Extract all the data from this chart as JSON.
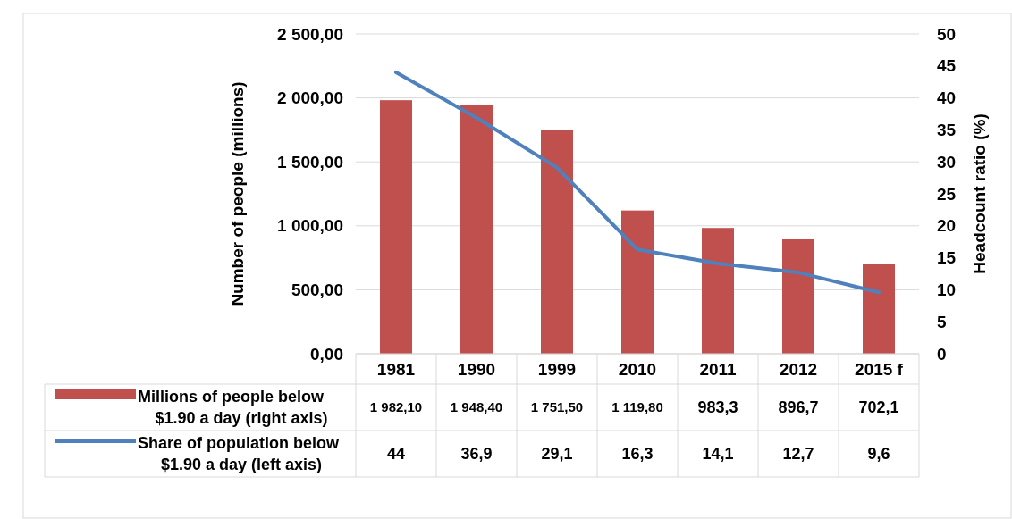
{
  "chart_data": {
    "type": "bar",
    "categories": [
      "1981",
      "1990",
      "1999",
      "2010",
      "2011",
      "2012",
      "2015 f"
    ],
    "series": [
      {
        "name": "Millions of people below $1.90 a day (right axis)",
        "color": "#c0504d",
        "values": [
          1982.1,
          1948.4,
          1751.5,
          1119.8,
          983.3,
          896.7,
          702.1
        ],
        "value_labels": [
          "1 982,10",
          "1 948,40",
          "1 751,50",
          "1 119,80",
          "983,3",
          "896,7",
          "702,1"
        ]
      },
      {
        "name": "Share of population below $1.90 a day (left axis)",
        "type": "line",
        "axis": "y2",
        "color": "#4f81bd",
        "values": [
          44,
          36.9,
          29.1,
          16.3,
          14.1,
          12.7,
          9.6
        ],
        "value_labels": [
          "44",
          "36,9",
          "29,1",
          "16,3",
          "14,1",
          "12,7",
          "9,6"
        ]
      }
    ],
    "ylabel": "Number of people (millions)",
    "y2label": "Headcount ratio (%)",
    "ylim": [
      0,
      2500
    ],
    "yticks": [
      {
        "value": 0,
        "label": "0,00"
      },
      {
        "value": 500,
        "label": "500,00"
      },
      {
        "value": 1000,
        "label": "1 000,00"
      },
      {
        "value": 1500,
        "label": "1 500,00"
      },
      {
        "value": 2000,
        "label": "2 000,00"
      },
      {
        "value": 2500,
        "label": "2 500,00"
      }
    ],
    "y2lim": [
      0,
      50
    ],
    "y2ticks": [
      0,
      5,
      10,
      15,
      20,
      25,
      30,
      35,
      40,
      45,
      50
    ],
    "grid": "y",
    "legend": "bottom"
  }
}
